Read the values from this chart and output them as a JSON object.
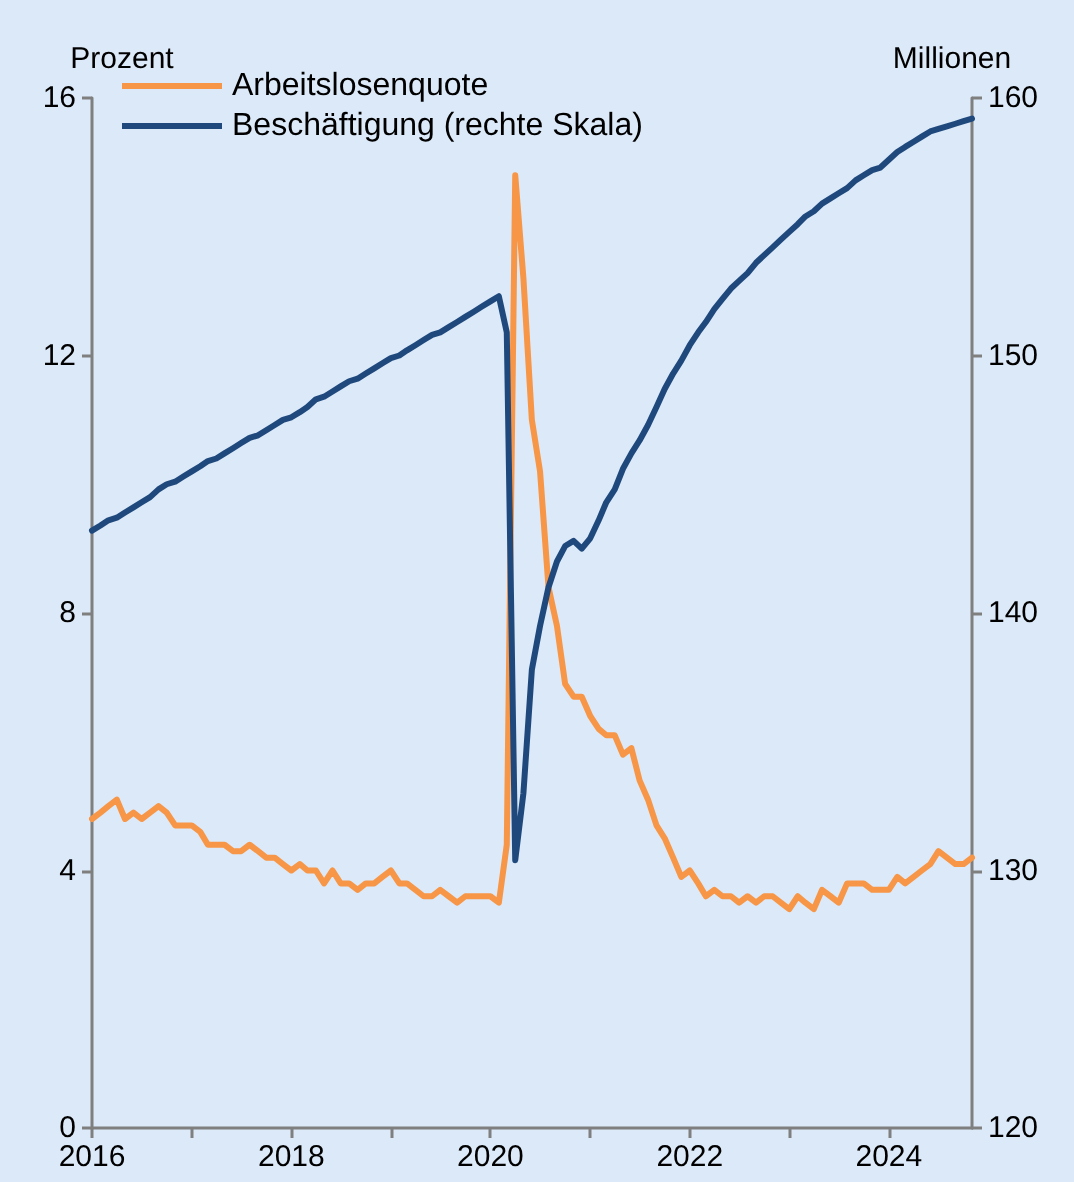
{
  "chart_data": {
    "type": "line",
    "ylabel": "Prozent",
    "y2label": "Millionen",
    "x": [
      "2016-01",
      "2016-02",
      "2016-03",
      "2016-04",
      "2016-05",
      "2016-06",
      "2016-07",
      "2016-08",
      "2016-09",
      "2016-10",
      "2016-11",
      "2016-12",
      "2017-01",
      "2017-02",
      "2017-03",
      "2017-04",
      "2017-05",
      "2017-06",
      "2017-07",
      "2017-08",
      "2017-09",
      "2017-10",
      "2017-11",
      "2017-12",
      "2018-01",
      "2018-02",
      "2018-03",
      "2018-04",
      "2018-05",
      "2018-06",
      "2018-07",
      "2018-08",
      "2018-09",
      "2018-10",
      "2018-11",
      "2018-12",
      "2019-01",
      "2019-02",
      "2019-03",
      "2019-04",
      "2019-05",
      "2019-06",
      "2019-07",
      "2019-08",
      "2019-09",
      "2019-10",
      "2019-11",
      "2019-12",
      "2020-01",
      "2020-02",
      "2020-03",
      "2020-04",
      "2020-05",
      "2020-06",
      "2020-07",
      "2020-08",
      "2020-09",
      "2020-10",
      "2020-11",
      "2020-12",
      "2021-01",
      "2021-02",
      "2021-03",
      "2021-04",
      "2021-05",
      "2021-06",
      "2021-07",
      "2021-08",
      "2021-09",
      "2021-10",
      "2021-11",
      "2021-12",
      "2022-01",
      "2022-02",
      "2022-03",
      "2022-04",
      "2022-05",
      "2022-06",
      "2022-07",
      "2022-08",
      "2022-09",
      "2022-10",
      "2022-11",
      "2022-12",
      "2023-01",
      "2023-02",
      "2023-03",
      "2023-04",
      "2023-05",
      "2023-06",
      "2023-07",
      "2023-08",
      "2023-09",
      "2023-10",
      "2023-11",
      "2023-12",
      "2024-01",
      "2024-02",
      "2024-03",
      "2024-04",
      "2024-05",
      "2024-06",
      "2024-07",
      "2024-08",
      "2024-09",
      "2024-10",
      "2024-11"
    ],
    "series": [
      {
        "name": "Arbeitslosenquote",
        "color": "#f79646",
        "values": [
          4.8,
          4.9,
          5.0,
          5.1,
          4.8,
          4.9,
          4.8,
          4.9,
          5.0,
          4.9,
          4.7,
          4.7,
          4.7,
          4.6,
          4.4,
          4.4,
          4.4,
          4.3,
          4.3,
          4.4,
          4.3,
          4.2,
          4.2,
          4.1,
          4.0,
          4.1,
          4.0,
          4.0,
          3.8,
          4.0,
          3.8,
          3.8,
          3.7,
          3.8,
          3.8,
          3.9,
          4.0,
          3.8,
          3.8,
          3.7,
          3.6,
          3.6,
          3.7,
          3.6,
          3.5,
          3.6,
          3.6,
          3.6,
          3.6,
          3.5,
          4.4,
          14.8,
          13.2,
          11.0,
          10.2,
          8.4,
          7.8,
          6.9,
          6.7,
          6.7,
          6.4,
          6.2,
          6.1,
          6.1,
          5.8,
          5.9,
          5.4,
          5.1,
          4.7,
          4.5,
          4.2,
          3.9,
          4.0,
          3.8,
          3.6,
          3.7,
          3.6,
          3.6,
          3.5,
          3.6,
          3.5,
          3.6,
          3.6,
          3.5,
          3.4,
          3.6,
          3.5,
          3.4,
          3.7,
          3.6,
          3.5,
          3.8,
          3.8,
          3.8,
          3.7,
          3.7,
          3.7,
          3.9,
          3.8,
          3.9,
          4.0,
          4.1,
          4.3,
          4.2,
          4.1,
          4.1,
          4.2
        ]
      },
      {
        "name": "Beschäftigung (rechte Skala)",
        "color": "#1f497d",
        "axis": "y2",
        "values": [
          143.2,
          143.4,
          143.6,
          143.7,
          143.9,
          144.1,
          144.3,
          144.5,
          144.8,
          145.0,
          145.1,
          145.3,
          145.5,
          145.7,
          145.9,
          146.0,
          146.2,
          146.4,
          146.6,
          146.8,
          146.9,
          147.1,
          147.3,
          147.5,
          147.6,
          147.8,
          148.0,
          148.3,
          148.4,
          148.6,
          148.8,
          149.0,
          149.1,
          149.3,
          149.5,
          149.7,
          149.9,
          150.0,
          150.2,
          150.4,
          150.6,
          150.8,
          150.9,
          151.1,
          151.3,
          151.5,
          151.7,
          151.9,
          152.1,
          152.3,
          150.9,
          130.4,
          133.0,
          137.8,
          139.5,
          141.0,
          142.0,
          142.6,
          142.8,
          142.5,
          142.9,
          143.6,
          144.3,
          144.8,
          145.6,
          146.2,
          146.7,
          147.3,
          148.0,
          148.7,
          149.3,
          149.8,
          150.4,
          150.9,
          151.3,
          151.8,
          152.2,
          152.6,
          152.9,
          153.2,
          153.6,
          153.9,
          154.2,
          154.5,
          154.8,
          155.1,
          155.4,
          155.6,
          155.9,
          156.1,
          156.3,
          156.5,
          156.8,
          157.0,
          157.2,
          157.3,
          157.6,
          157.9,
          158.1,
          158.3,
          158.5,
          158.7,
          158.8,
          158.9,
          159.0,
          159.1,
          159.2
        ]
      }
    ],
    "xlim": [
      "2016-01",
      "2024-11"
    ],
    "xticks": [
      {
        "value": "2016",
        "label": "2016"
      },
      {
        "value": "2017",
        "label": null
      },
      {
        "value": "2018",
        "label": "2018"
      },
      {
        "value": "2019",
        "label": null
      },
      {
        "value": "2020",
        "label": "2020"
      },
      {
        "value": "2021",
        "label": null
      },
      {
        "value": "2022",
        "label": "2022"
      },
      {
        "value": "2023",
        "label": null
      },
      {
        "value": "2024",
        "label": "2024"
      }
    ],
    "ylim": [
      0,
      16
    ],
    "yticks": [
      0,
      4,
      8,
      12,
      16
    ],
    "y2lim": [
      120,
      160
    ],
    "y2ticks": [
      120,
      130,
      140,
      150,
      160
    ],
    "grid": false,
    "legend": "top left",
    "marker": "none",
    "line_style": "solid"
  }
}
